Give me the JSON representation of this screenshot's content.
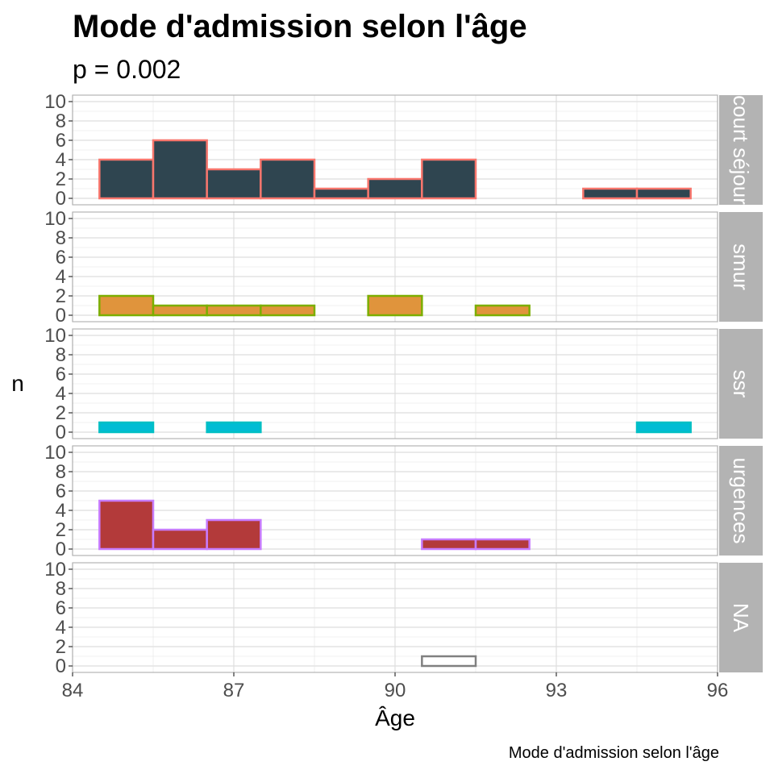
{
  "chart_data": {
    "type": "bar",
    "title": "Mode d'admission selon l'âge",
    "subtitle": "p = 0.002",
    "caption": "Mode d'admission selon l'âge",
    "xlabel": "Âge",
    "ylabel": "n",
    "xlim": [
      84,
      96
    ],
    "ylim": [
      0,
      10
    ],
    "x_ticks": [
      "84",
      "87",
      "90",
      "93",
      "96"
    ],
    "y_ticks": [
      "0",
      "2",
      "4",
      "6",
      "8",
      "10"
    ],
    "bin_starts": [
      84.5,
      85.5,
      86.5,
      87.5,
      88.5,
      89.5,
      90.5,
      91.5,
      92.5,
      93.5,
      94.5
    ],
    "bin_width": 1,
    "grid": true,
    "panels": [
      {
        "name": "court séjour",
        "fill": "#2f4550",
        "outline": "#f8766d",
        "values": [
          4,
          6,
          3,
          4,
          1,
          2,
          4,
          0,
          0,
          1,
          1
        ]
      },
      {
        "name": "smur",
        "fill": "#e0943c",
        "outline": "#7cae00",
        "values": [
          2,
          1,
          1,
          1,
          0,
          2,
          0,
          1,
          0,
          0,
          0
        ]
      },
      {
        "name": "ssr",
        "fill": "#00bcd4",
        "outline": "#00bfc4",
        "values": [
          1,
          0,
          1,
          0,
          0,
          0,
          0,
          0,
          0,
          0,
          1
        ]
      },
      {
        "name": "urgences",
        "fill": "#b33a3a",
        "outline": "#c77cff",
        "values": [
          5,
          2,
          3,
          0,
          0,
          0,
          1,
          1,
          0,
          0,
          0
        ]
      },
      {
        "name": "NA",
        "fill": "#ffffff",
        "outline": "#808080",
        "values": [
          0,
          0,
          0,
          0,
          0,
          0,
          1,
          0,
          0,
          0,
          0
        ]
      }
    ]
  }
}
